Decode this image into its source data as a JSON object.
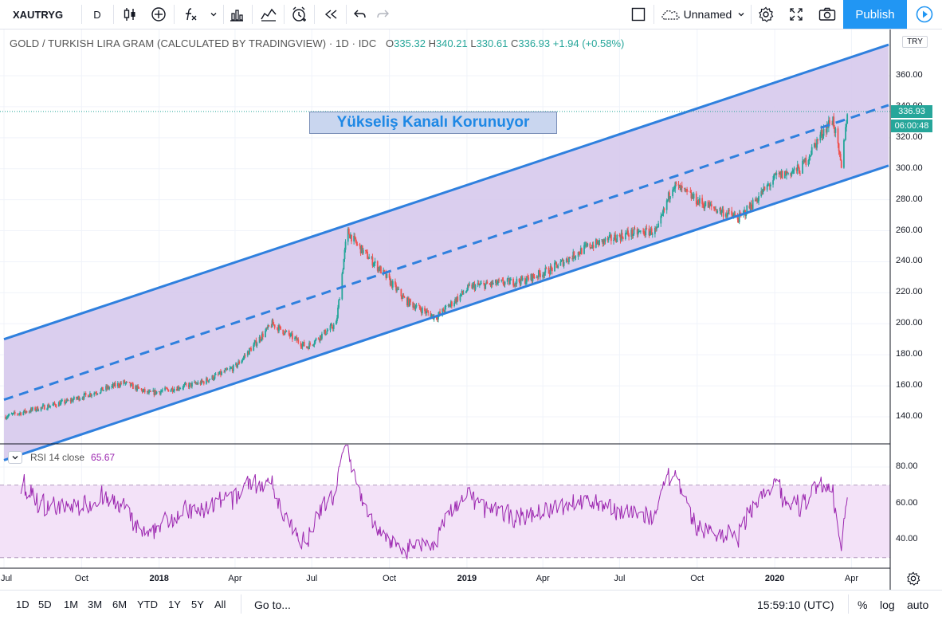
{
  "toolbar": {
    "symbol": "XAUTRYG",
    "interval": "D",
    "layout_name": "Unnamed",
    "publish_label": "Publish"
  },
  "legend": {
    "title": "GOLD / TURKISH LIRA GRAM (CALCULATED BY TRADINGVIEW) · 1D · IDC",
    "open_label": "O",
    "open": "335.32",
    "high_label": "H",
    "high": "340.21",
    "low_label": "L",
    "low": "330.61",
    "close_label": "C",
    "close": "336.93",
    "change": "+1.94 (+0.58%)"
  },
  "annotation": {
    "text": "Yükseliş Kanalı Korunuyor",
    "text_color": "#1e88e5",
    "background": "#c9d6ef"
  },
  "price_scale": {
    "currency": "TRY",
    "labels": [
      "360.00",
      "340.00",
      "320.00",
      "300.00",
      "280.00",
      "260.00",
      "240.00",
      "220.00",
      "200.00",
      "180.00",
      "160.00",
      "140.00"
    ],
    "last_price": "336.93",
    "countdown": "06:00:48"
  },
  "rsi": {
    "label": "RSI 14 close",
    "value": "65.67",
    "labels": [
      "80.00",
      "60.00",
      "40.00"
    ],
    "upper_band": 70,
    "lower_band": 30,
    "color": "#9c27b0"
  },
  "time_axis": [
    "Jul",
    "Oct",
    "2018",
    "Apr",
    "Jul",
    "Oct",
    "2019",
    "Apr",
    "Jul",
    "Oct",
    "2020",
    "Apr"
  ],
  "bottom": {
    "ranges": [
      "1D",
      "5D",
      "1M",
      "3M",
      "6M",
      "YTD",
      "1Y",
      "5Y",
      "All"
    ],
    "goto": "Go to...",
    "clock": "15:59:10 (UTC)",
    "percent": "%",
    "log": "log",
    "auto": "auto"
  },
  "colors": {
    "channel_line": "#2f80de",
    "channel_fill": "#d6c9ec",
    "up_candle": "#26a69a",
    "down_candle": "#ef5350",
    "rsi_band_fill": "#f3e2f8"
  },
  "chart_data": {
    "type": "candlestick",
    "symbol": "XAUTRYG",
    "price_range": [
      125,
      385
    ],
    "x_range": [
      "2017-07",
      "2020-04"
    ],
    "anchors": [
      {
        "date": "2017-07-01",
        "price": 140
      },
      {
        "date": "2017-09-15",
        "price": 150
      },
      {
        "date": "2017-11-20",
        "price": 162
      },
      {
        "date": "2017-12-20",
        "price": 155
      },
      {
        "date": "2018-02-20",
        "price": 162
      },
      {
        "date": "2018-04-01",
        "price": 172
      },
      {
        "date": "2018-05-15",
        "price": 200
      },
      {
        "date": "2018-06-25",
        "price": 185
      },
      {
        "date": "2018-07-30",
        "price": 200
      },
      {
        "date": "2018-08-12",
        "price": 260
      },
      {
        "date": "2018-08-25",
        "price": 250
      },
      {
        "date": "2018-09-20",
        "price": 235
      },
      {
        "date": "2018-10-20",
        "price": 215
      },
      {
        "date": "2018-11-25",
        "price": 204
      },
      {
        "date": "2019-01-05",
        "price": 224
      },
      {
        "date": "2019-03-10",
        "price": 228
      },
      {
        "date": "2019-04-10",
        "price": 235
      },
      {
        "date": "2019-05-25",
        "price": 250
      },
      {
        "date": "2019-07-10",
        "price": 258
      },
      {
        "date": "2019-08-15",
        "price": 260
      },
      {
        "date": "2019-09-02",
        "price": 290
      },
      {
        "date": "2019-10-05",
        "price": 278
      },
      {
        "date": "2019-11-20",
        "price": 268
      },
      {
        "date": "2020-01-03",
        "price": 295
      },
      {
        "date": "2020-02-01",
        "price": 300
      },
      {
        "date": "2020-02-28",
        "price": 325
      },
      {
        "date": "2020-03-10",
        "price": 332
      },
      {
        "date": "2020-03-20",
        "price": 300
      },
      {
        "date": "2020-03-27",
        "price": 336.93
      }
    ],
    "channel": {
      "upper": [
        {
          "date": "2017-07-01",
          "price": 190
        },
        {
          "date": "2020-05-15",
          "price": 380
        }
      ],
      "middle": [
        {
          "date": "2017-07-01",
          "price": 151
        },
        {
          "date": "2020-05-15",
          "price": 341
        }
      ],
      "lower": [
        {
          "date": "2017-07-01",
          "price": 112
        },
        {
          "date": "2020-05-15",
          "price": 302
        }
      ]
    },
    "rsi": {
      "period": 14,
      "last": 65.67,
      "range": [
        25,
        95
      ],
      "bands": [
        30,
        70
      ]
    }
  }
}
